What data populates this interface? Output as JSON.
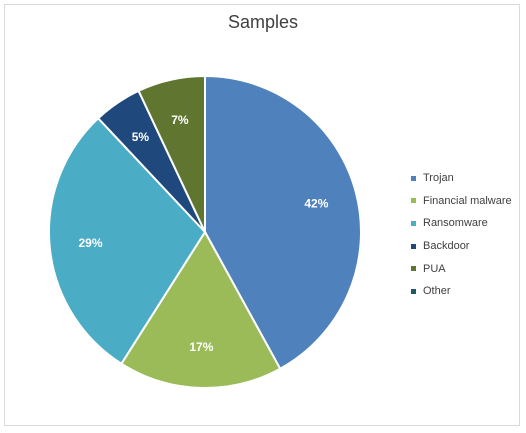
{
  "chart_data": {
    "type": "pie",
    "title": "Samples",
    "categories": [
      "Trojan",
      "Financial malware",
      "Ransomware",
      "Backdoor",
      "PUA",
      "Other"
    ],
    "values": [
      42,
      17,
      29,
      5,
      7,
      0
    ],
    "data_labels": [
      "42%",
      "17%",
      "29%",
      "5%",
      "7%",
      ""
    ],
    "colors": [
      "#4f81bd",
      "#9bbb59",
      "#4bacc6",
      "#1f497d",
      "#5f7530",
      "#205867"
    ],
    "start_angle_deg": 0,
    "direction": "clockwise",
    "legend_position": "right"
  }
}
